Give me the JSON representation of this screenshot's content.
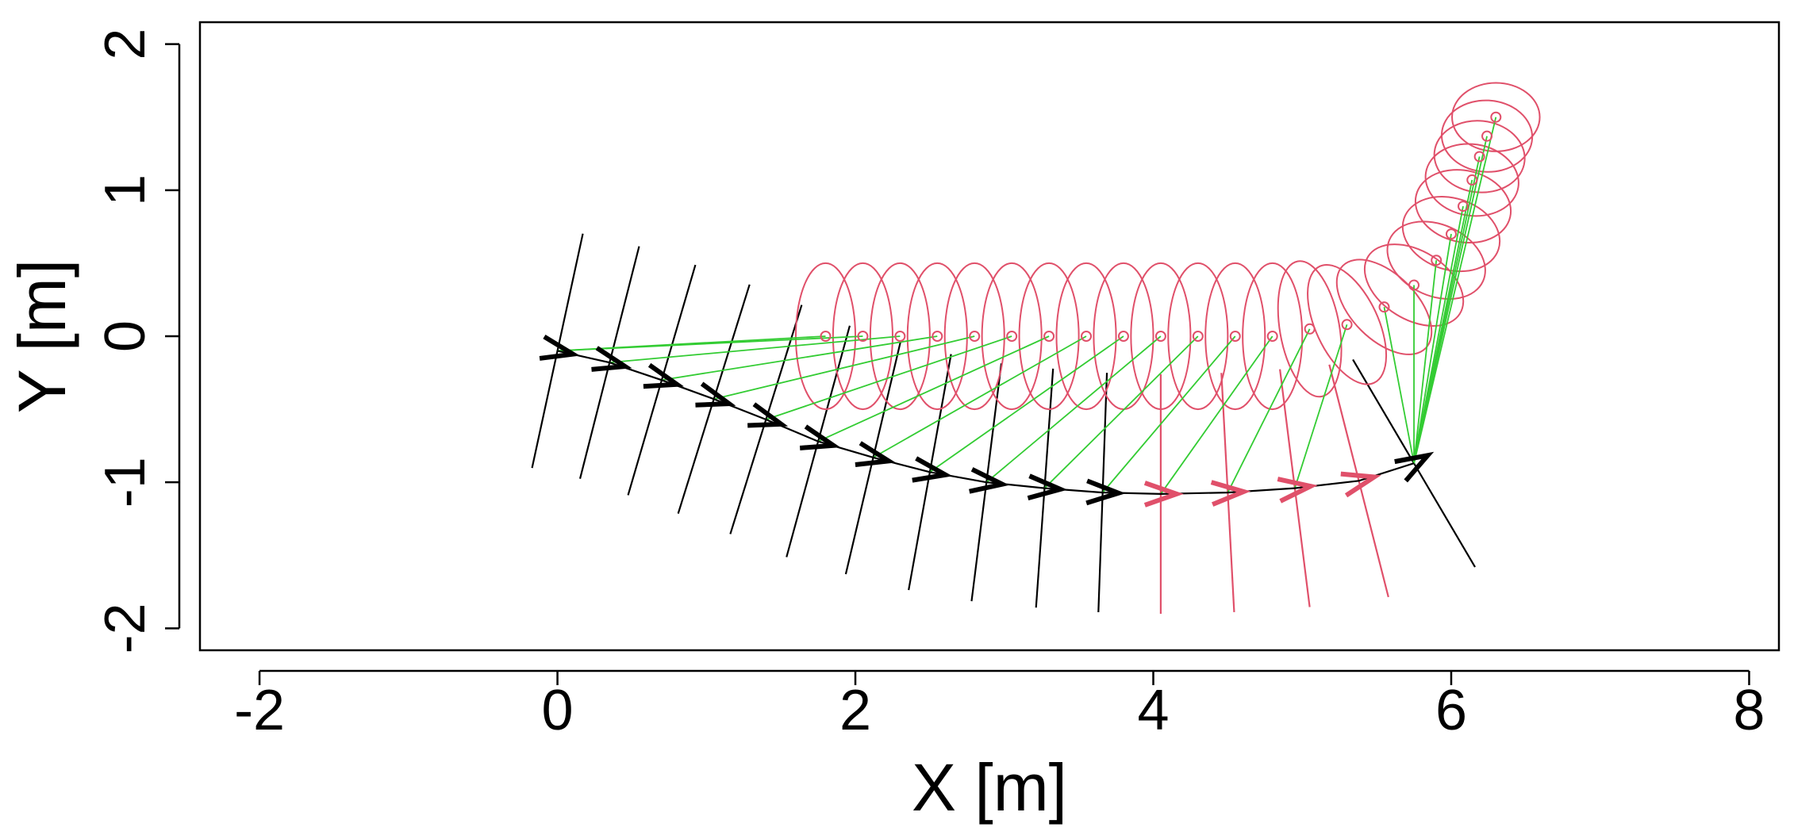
{
  "chart_data": {
    "type": "scatter",
    "title": "",
    "xlabel": "X [m]",
    "ylabel": "Y [m]",
    "xlim": [
      -2.4,
      8.2
    ],
    "ylim": [
      -2.15,
      2.15
    ],
    "x_ticks": [
      -2,
      0,
      2,
      4,
      6,
      8
    ],
    "y_ticks": [
      -2,
      -1,
      0,
      1,
      2
    ],
    "x_tick_labels": [
      "-2",
      "0",
      "2",
      "4",
      "6",
      "8"
    ],
    "y_tick_labels": [
      "-2",
      "-1",
      "0",
      "1",
      "2"
    ],
    "grid": false,
    "legend": "none",
    "colors": {
      "trajectory": "#000000",
      "pose_black": "#000000",
      "pose_red": "#e0506a",
      "ellipse": "#e0506a",
      "landmark": "#e0506a",
      "link": "#33cc33"
    },
    "trajectory": [
      {
        "x": 0.0,
        "y": -0.1,
        "theta_deg": -12,
        "predicted": false
      },
      {
        "x": 0.35,
        "y": -0.18,
        "theta_deg": -14,
        "predicted": false
      },
      {
        "x": 0.7,
        "y": -0.3,
        "theta_deg": -16,
        "predicted": false
      },
      {
        "x": 1.05,
        "y": -0.43,
        "theta_deg": -17,
        "predicted": false
      },
      {
        "x": 1.4,
        "y": -0.57,
        "theta_deg": -17,
        "predicted": false
      },
      {
        "x": 1.75,
        "y": -0.72,
        "theta_deg": -15,
        "predicted": false
      },
      {
        "x": 2.12,
        "y": -0.83,
        "theta_deg": -13,
        "predicted": false
      },
      {
        "x": 2.5,
        "y": -0.93,
        "theta_deg": -10,
        "predicted": false
      },
      {
        "x": 2.88,
        "y": -1.0,
        "theta_deg": -7,
        "predicted": false
      },
      {
        "x": 3.27,
        "y": -1.04,
        "theta_deg": -4,
        "predicted": false
      },
      {
        "x": 3.66,
        "y": -1.07,
        "theta_deg": -2,
        "predicted": false
      },
      {
        "x": 4.05,
        "y": -1.08,
        "theta_deg": 0,
        "predicted": true
      },
      {
        "x": 4.5,
        "y": -1.07,
        "theta_deg": 3,
        "predicted": true
      },
      {
        "x": 4.95,
        "y": -1.04,
        "theta_deg": 7,
        "predicted": true
      },
      {
        "x": 5.38,
        "y": -0.99,
        "theta_deg": 14,
        "predicted": true
      },
      {
        "x": 5.75,
        "y": -0.87,
        "theta_deg": 30,
        "predicted": false
      }
    ],
    "landmarks": [
      {
        "x": 1.8,
        "y": 0.0,
        "rx": 0.2,
        "ry": 0.5,
        "tilt_deg": 0
      },
      {
        "x": 2.05,
        "y": 0.0,
        "rx": 0.2,
        "ry": 0.5,
        "tilt_deg": 0
      },
      {
        "x": 2.3,
        "y": 0.0,
        "rx": 0.2,
        "ry": 0.5,
        "tilt_deg": 0
      },
      {
        "x": 2.55,
        "y": 0.0,
        "rx": 0.2,
        "ry": 0.5,
        "tilt_deg": 0
      },
      {
        "x": 2.8,
        "y": 0.0,
        "rx": 0.2,
        "ry": 0.5,
        "tilt_deg": 0
      },
      {
        "x": 3.05,
        "y": 0.0,
        "rx": 0.2,
        "ry": 0.5,
        "tilt_deg": 0
      },
      {
        "x": 3.3,
        "y": 0.0,
        "rx": 0.2,
        "ry": 0.5,
        "tilt_deg": 0
      },
      {
        "x": 3.55,
        "y": 0.0,
        "rx": 0.2,
        "ry": 0.5,
        "tilt_deg": 0
      },
      {
        "x": 3.8,
        "y": 0.0,
        "rx": 0.2,
        "ry": 0.5,
        "tilt_deg": 0
      },
      {
        "x": 4.05,
        "y": 0.0,
        "rx": 0.2,
        "ry": 0.5,
        "tilt_deg": 0
      },
      {
        "x": 4.3,
        "y": 0.0,
        "rx": 0.2,
        "ry": 0.5,
        "tilt_deg": 0
      },
      {
        "x": 4.55,
        "y": 0.0,
        "rx": 0.2,
        "ry": 0.5,
        "tilt_deg": 0
      },
      {
        "x": 4.8,
        "y": 0.0,
        "rx": 0.2,
        "ry": 0.5,
        "tilt_deg": 0
      },
      {
        "x": 5.05,
        "y": 0.05,
        "rx": 0.2,
        "ry": 0.47,
        "tilt_deg": 10
      },
      {
        "x": 5.3,
        "y": 0.08,
        "rx": 0.21,
        "ry": 0.44,
        "tilt_deg": 25
      },
      {
        "x": 5.55,
        "y": 0.2,
        "rx": 0.22,
        "ry": 0.4,
        "tilt_deg": 45
      },
      {
        "x": 5.75,
        "y": 0.35,
        "rx": 0.23,
        "ry": 0.37,
        "tilt_deg": 58
      },
      {
        "x": 5.9,
        "y": 0.52,
        "rx": 0.24,
        "ry": 0.35,
        "tilt_deg": 66
      },
      {
        "x": 6.0,
        "y": 0.7,
        "rx": 0.24,
        "ry": 0.34,
        "tilt_deg": 72
      },
      {
        "x": 6.08,
        "y": 0.89,
        "rx": 0.24,
        "ry": 0.33,
        "tilt_deg": 77
      },
      {
        "x": 6.14,
        "y": 1.07,
        "rx": 0.24,
        "ry": 0.32,
        "tilt_deg": 81
      },
      {
        "x": 6.19,
        "y": 1.23,
        "rx": 0.24,
        "ry": 0.31,
        "tilt_deg": 84
      },
      {
        "x": 6.24,
        "y": 1.37,
        "rx": 0.24,
        "ry": 0.31,
        "tilt_deg": 87
      },
      {
        "x": 6.3,
        "y": 1.5,
        "rx": 0.23,
        "ry": 0.3,
        "tilt_deg": 90
      }
    ],
    "links": [
      {
        "from": 0,
        "to": 0
      },
      {
        "from": 0,
        "to": 1
      },
      {
        "from": 1,
        "to": 2
      },
      {
        "from": 2,
        "to": 3
      },
      {
        "from": 3,
        "to": 4
      },
      {
        "from": 4,
        "to": 5
      },
      {
        "from": 5,
        "to": 6
      },
      {
        "from": 6,
        "to": 7
      },
      {
        "from": 7,
        "to": 8
      },
      {
        "from": 8,
        "to": 9
      },
      {
        "from": 9,
        "to": 10
      },
      {
        "from": 10,
        "to": 11
      },
      {
        "from": 11,
        "to": 12
      },
      {
        "from": 12,
        "to": 13
      },
      {
        "from": 13,
        "to": 14
      },
      {
        "from": 15,
        "to": 15
      },
      {
        "from": 15,
        "to": 16
      },
      {
        "from": 15,
        "to": 17
      },
      {
        "from": 15,
        "to": 18
      },
      {
        "from": 15,
        "to": 19
      },
      {
        "from": 15,
        "to": 20
      },
      {
        "from": 15,
        "to": 21
      },
      {
        "from": 15,
        "to": 22
      },
      {
        "from": 15,
        "to": 23
      }
    ]
  }
}
